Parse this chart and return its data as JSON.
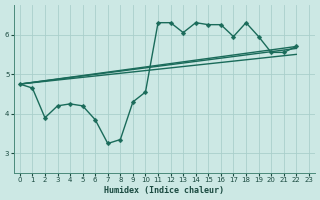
{
  "xlabel": "Humidex (Indice chaleur)",
  "xlim": [
    -0.5,
    23.5
  ],
  "ylim": [
    2.5,
    6.75
  ],
  "bg_color": "#cce8e4",
  "grid_color": "#aacfcb",
  "line_color": "#1a6b5a",
  "xticks": [
    0,
    1,
    2,
    3,
    4,
    5,
    6,
    7,
    8,
    9,
    10,
    11,
    12,
    13,
    14,
    15,
    16,
    17,
    18,
    19,
    20,
    21,
    22,
    23
  ],
  "yticks": [
    3,
    4,
    5,
    6
  ],
  "main_series_x": [
    0,
    1,
    2,
    3,
    4,
    5,
    6,
    7,
    8,
    9,
    10,
    11,
    12,
    13,
    14,
    15,
    16,
    17,
    18,
    19,
    20,
    21,
    22
  ],
  "main_series_y": [
    4.75,
    4.65,
    3.9,
    4.2,
    4.25,
    4.2,
    3.85,
    3.25,
    3.35,
    4.3,
    4.55,
    6.3,
    6.3,
    6.05,
    6.3,
    6.25,
    6.25,
    5.95,
    6.3,
    5.95,
    5.55,
    5.55,
    5.7
  ],
  "trend_lines": [
    {
      "x0": 0,
      "y0": 4.75,
      "x1": 22,
      "y1": 5.65
    },
    {
      "x0": 0,
      "y0": 4.75,
      "x1": 22,
      "y1": 5.5
    },
    {
      "x0": 0,
      "y0": 4.75,
      "x1": 22,
      "y1": 5.7
    }
  ],
  "marker_size": 2.5,
  "line_width": 1.0
}
